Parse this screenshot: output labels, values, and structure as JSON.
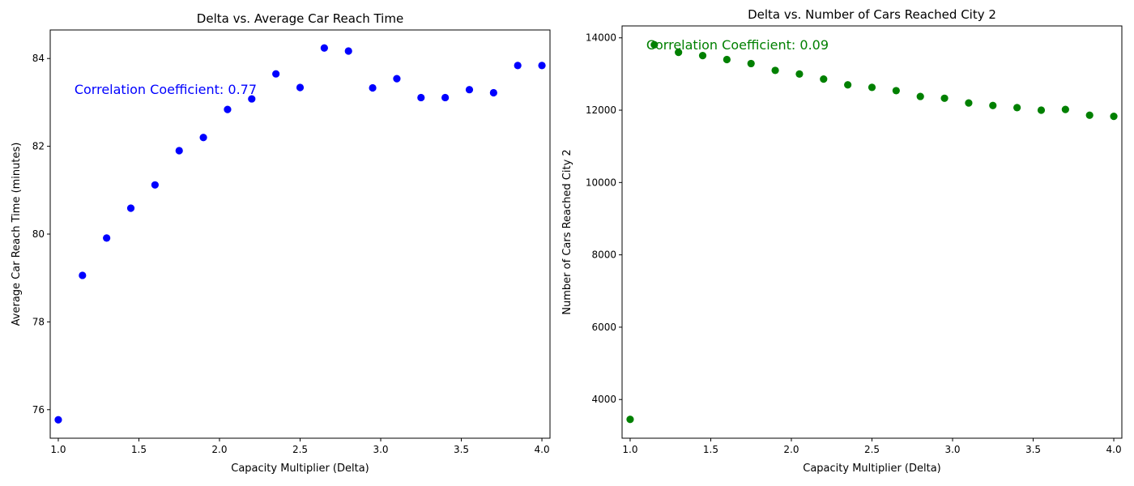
{
  "chart_data": [
    {
      "type": "scatter",
      "title": "Delta vs. Average Car Reach Time",
      "xlabel": "Capacity Multiplier (Delta)",
      "ylabel": "Average Car Reach Time (minutes)",
      "xlim": [
        0.95,
        4.05
      ],
      "ylim": [
        75.35,
        84.65
      ],
      "xticks": [
        1.0,
        1.5,
        2.0,
        2.5,
        3.0,
        3.5,
        4.0
      ],
      "xtick_labels": [
        "1.0",
        "1.5",
        "2.0",
        "2.5",
        "3.0",
        "3.5",
        "4.0"
      ],
      "yticks": [
        76,
        78,
        80,
        82,
        84
      ],
      "ytick_labels": [
        "76",
        "78",
        "80",
        "82",
        "84"
      ],
      "grid": false,
      "color": "#0000ff",
      "annotation": {
        "text": "Correlation Coefficient: 0.77",
        "x": 1.1,
        "y": 83.3,
        "color": "#0000ff"
      },
      "series": [
        {
          "x": [
            1.0,
            1.15,
            1.3,
            1.45,
            1.6,
            1.75,
            1.9,
            2.05,
            2.2,
            2.35,
            2.5,
            2.65,
            2.8,
            2.95,
            3.1,
            3.25,
            3.4,
            3.55,
            3.7,
            3.85,
            4.0
          ],
          "y": [
            75.77,
            79.06,
            79.91,
            80.59,
            81.12,
            81.9,
            82.2,
            82.84,
            83.08,
            83.65,
            83.34,
            84.24,
            84.17,
            83.33,
            83.54,
            83.11,
            83.11,
            83.29,
            83.22,
            83.84,
            83.84
          ]
        }
      ]
    },
    {
      "type": "scatter",
      "title": "Delta vs. Number of Cars Reached City 2",
      "xlabel": "Capacity Multiplier (Delta)",
      "ylabel": "Number of Cars Reached City 2",
      "xlim": [
        0.95,
        4.05
      ],
      "ylim": [
        2930,
        14330
      ],
      "xticks": [
        1.0,
        1.5,
        2.0,
        2.5,
        3.0,
        3.5,
        4.0
      ],
      "xtick_labels": [
        "1.0",
        "1.5",
        "2.0",
        "2.5",
        "3.0",
        "3.5",
        "4.0"
      ],
      "yticks": [
        4000,
        6000,
        8000,
        10000,
        12000,
        14000
      ],
      "ytick_labels": [
        "4000",
        "6000",
        "8000",
        "10000",
        "12000",
        "14000"
      ],
      "grid": false,
      "color": "#008000",
      "annotation": {
        "text": "Correlation Coefficient: 0.09",
        "x": 1.1,
        "y": 13820,
        "color": "#008000"
      },
      "series": [
        {
          "x": [
            1.0,
            1.15,
            1.3,
            1.45,
            1.6,
            1.75,
            1.9,
            2.05,
            2.2,
            2.35,
            2.5,
            2.65,
            2.8,
            2.95,
            3.1,
            3.25,
            3.4,
            3.55,
            3.7,
            3.85,
            4.0
          ],
          "y": [
            3450,
            13810,
            13600,
            13510,
            13400,
            13290,
            13100,
            13000,
            12860,
            12700,
            12630,
            12540,
            12380,
            12330,
            12200,
            12130,
            12070,
            12000,
            12020,
            11860,
            11830
          ]
        }
      ]
    }
  ]
}
